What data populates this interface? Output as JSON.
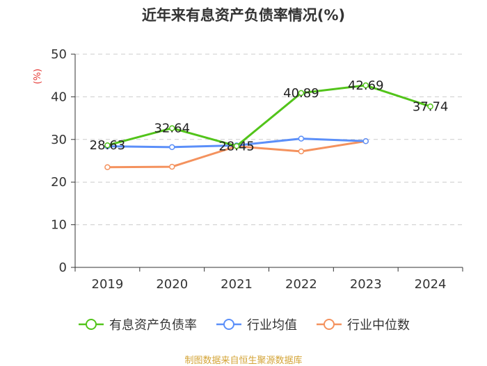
{
  "chart_data": {
    "type": "line",
    "title": "近年来有息资产负债率情况(%)",
    "ylabel": "(%)",
    "xlabel": "",
    "categories": [
      "2019",
      "2020",
      "2021",
      "2022",
      "2023",
      "2024"
    ],
    "ylim": [
      0,
      50
    ],
    "yticks": [
      0,
      10,
      20,
      30,
      40,
      50
    ],
    "grid": true,
    "legend_position": "bottom",
    "series": [
      {
        "name": "有息资产负债率",
        "color": "#52c41a",
        "values": [
          28.63,
          32.64,
          28.45,
          40.89,
          42.69,
          37.74
        ],
        "show_labels": true
      },
      {
        "name": "行业均值",
        "color": "#5b8ff9",
        "values": [
          28.4,
          28.2,
          28.6,
          30.2,
          29.6,
          null
        ],
        "show_labels": false
      },
      {
        "name": "行业中位数",
        "color": "#f4925e",
        "values": [
          23.5,
          23.6,
          28.4,
          27.2,
          29.6,
          null
        ],
        "show_labels": false
      }
    ]
  },
  "source": "制图数据来自恒生聚源数据库"
}
